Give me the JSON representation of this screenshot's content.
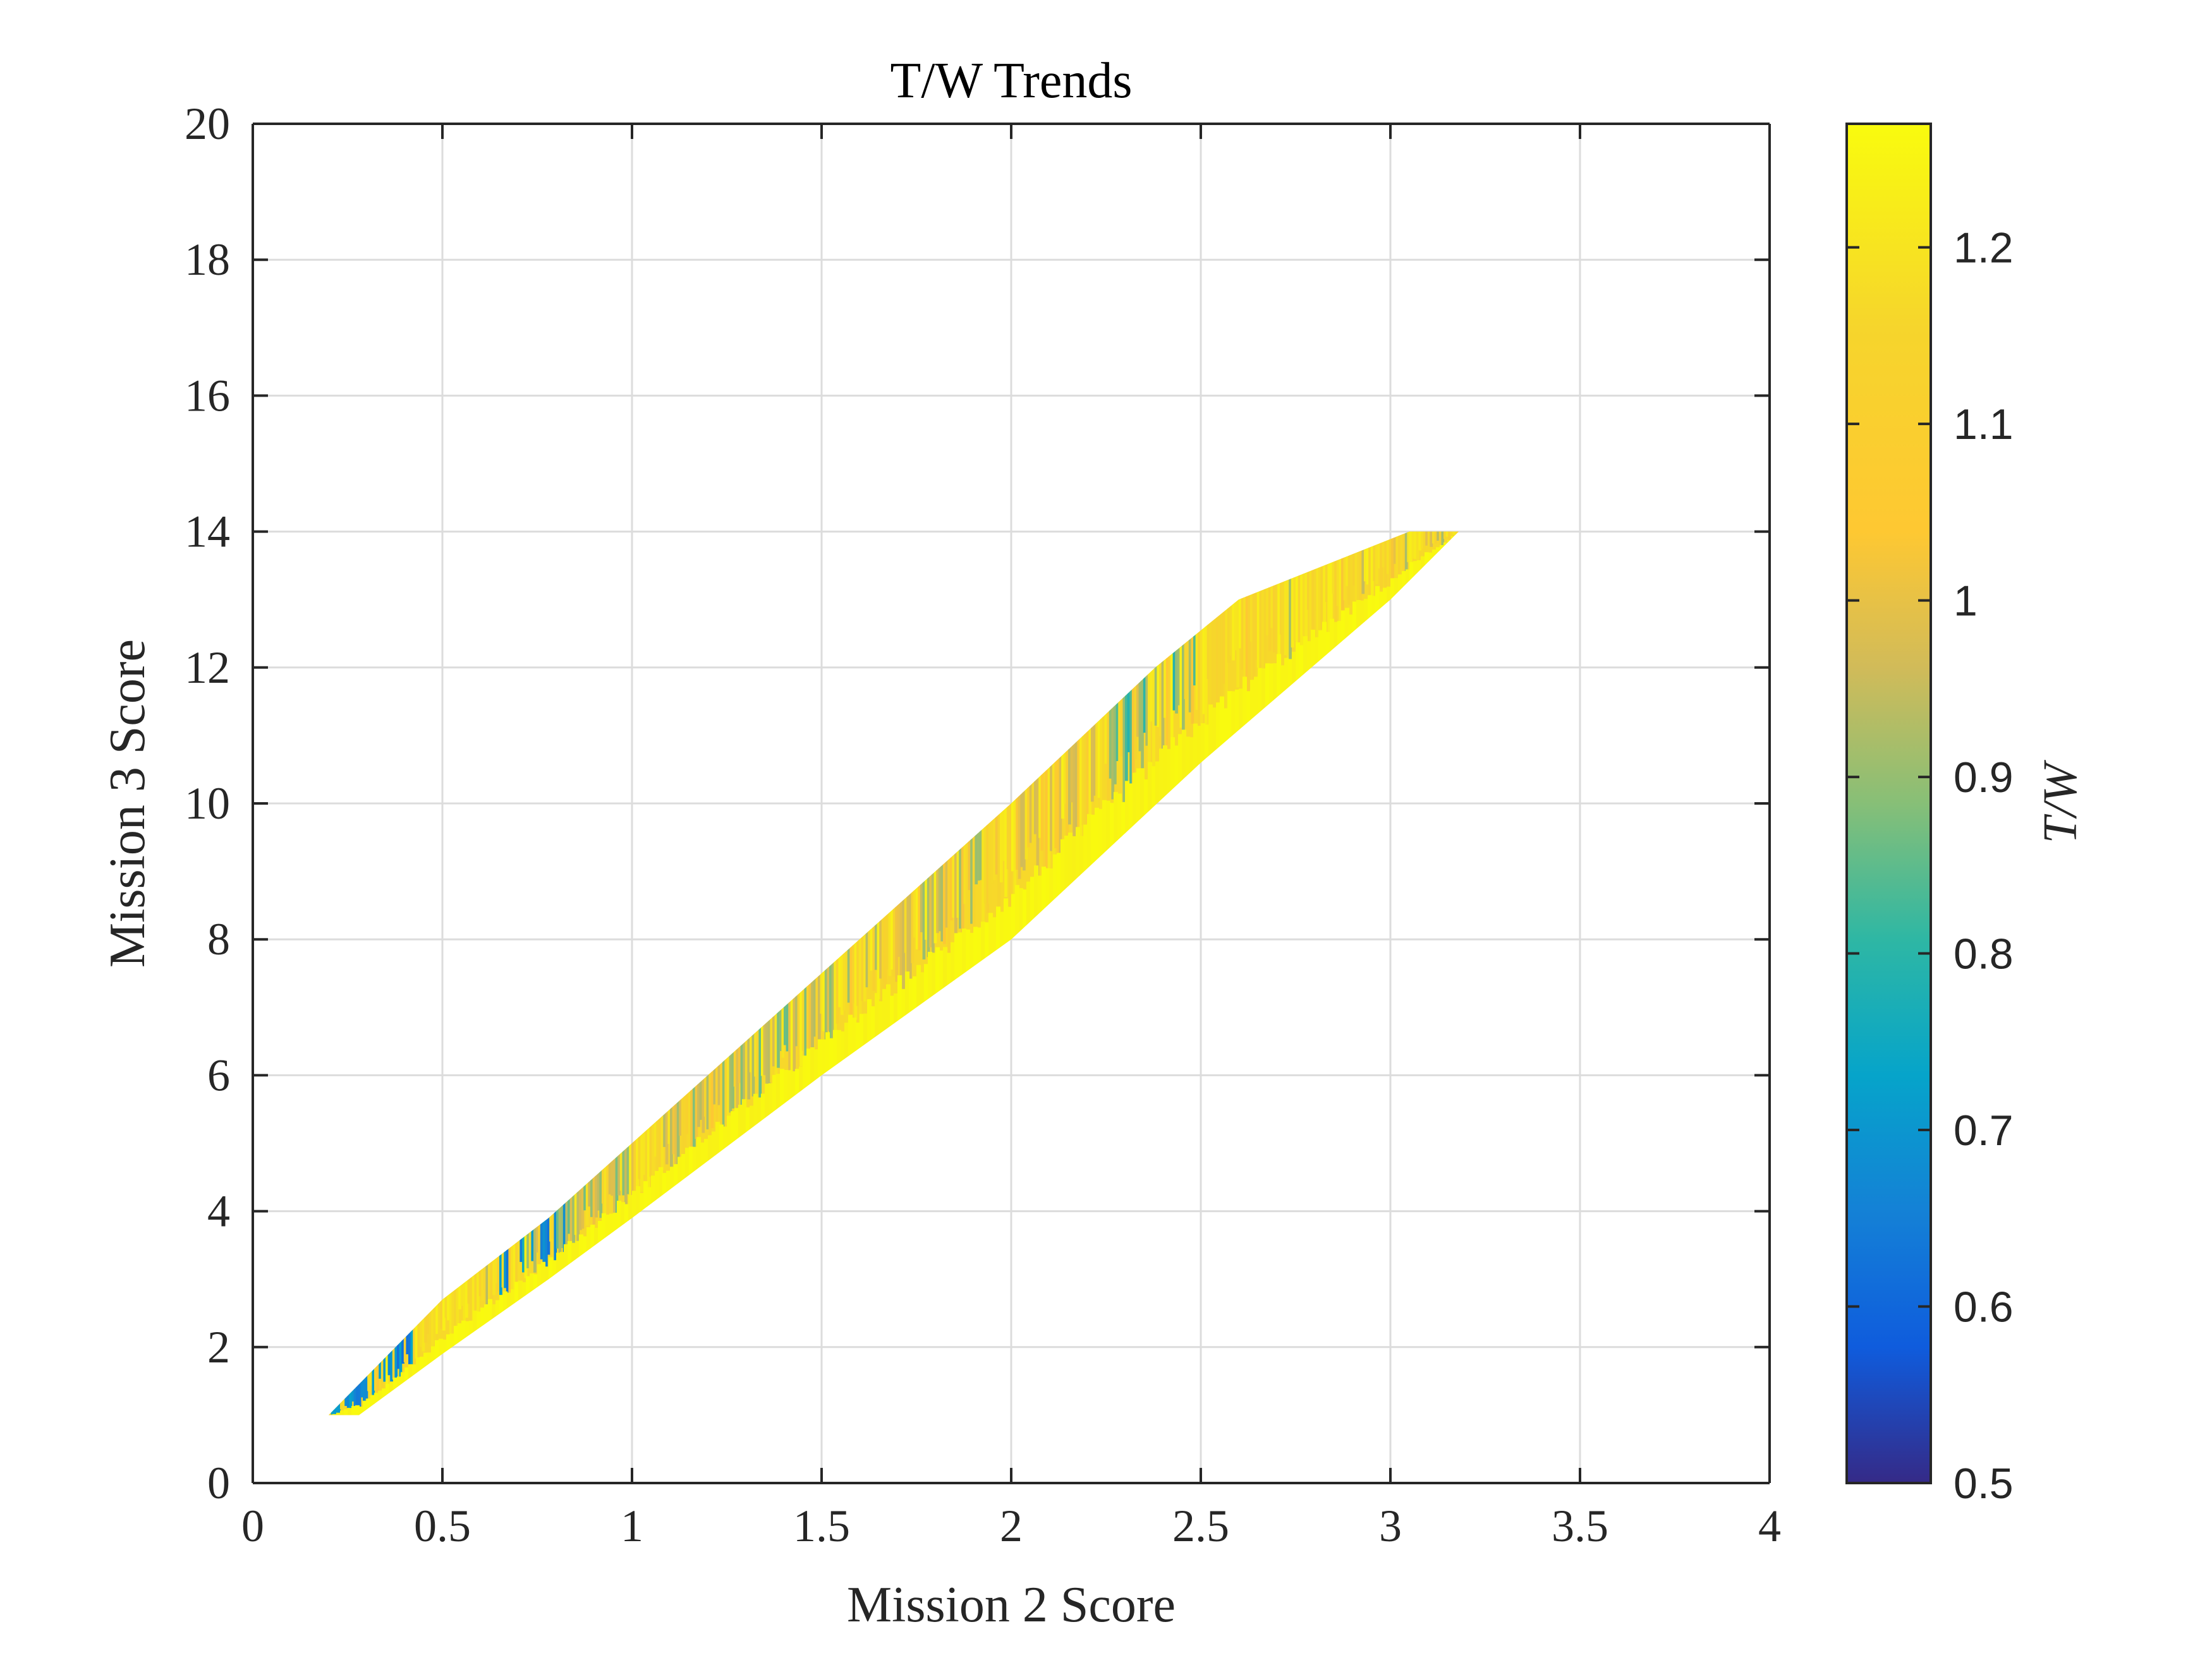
{
  "chart_data": {
    "type": "heatmap",
    "title": "T/W Trends",
    "xlabel": "Mission 2 Score",
    "ylabel": "Mission 3 Score",
    "xlim": [
      0,
      4
    ],
    "ylim": [
      0,
      20
    ],
    "x_ticks": [
      "0",
      "0.5",
      "1",
      "1.5",
      "2",
      "2.5",
      "3",
      "3.5",
      "4"
    ],
    "y_ticks": [
      "0",
      "2",
      "4",
      "6",
      "8",
      "10",
      "12",
      "14",
      "16",
      "18",
      "20"
    ],
    "grid": true,
    "colorbar": {
      "label": "T/W",
      "range": [
        0.5,
        1.27
      ],
      "ticks": [
        "0.5",
        "0.6",
        "0.7",
        "0.8",
        "0.9",
        "1",
        "1.1",
        "1.2"
      ],
      "colormap": "parula"
    },
    "region": {
      "description_points_upper": [
        [
          0.2,
          1.0
        ],
        [
          0.5,
          2.7
        ],
        [
          0.78,
          3.9
        ],
        [
          1.0,
          5.0
        ],
        [
          1.5,
          7.5
        ],
        [
          2.0,
          10.0
        ],
        [
          2.38,
          12.0
        ],
        [
          2.6,
          13.0
        ],
        [
          3.05,
          14.0
        ]
      ],
      "description_points_lower": [
        [
          0.28,
          1.0
        ],
        [
          0.5,
          1.9
        ],
        [
          0.78,
          3.0
        ],
        [
          1.0,
          3.9
        ],
        [
          1.5,
          6.0
        ],
        [
          2.0,
          8.0
        ],
        [
          2.5,
          10.6
        ],
        [
          3.0,
          13.0
        ],
        [
          3.18,
          14.0
        ]
      ],
      "low_value_zones": [
        {
          "x": 0.3,
          "y": 1.3,
          "value": 0.6
        },
        {
          "x": 0.75,
          "y": 3.8,
          "value": 0.62
        },
        {
          "x": 0.9,
          "y": 4.3,
          "value": 0.85
        },
        {
          "x": 1.2,
          "y": 5.8,
          "value": 0.88
        },
        {
          "x": 1.45,
          "y": 6.8,
          "value": 0.85
        },
        {
          "x": 1.8,
          "y": 8.6,
          "value": 0.9
        },
        {
          "x": 2.1,
          "y": 10.1,
          "value": 0.95
        },
        {
          "x": 2.37,
          "y": 11.8,
          "value": 0.78
        }
      ]
    }
  }
}
